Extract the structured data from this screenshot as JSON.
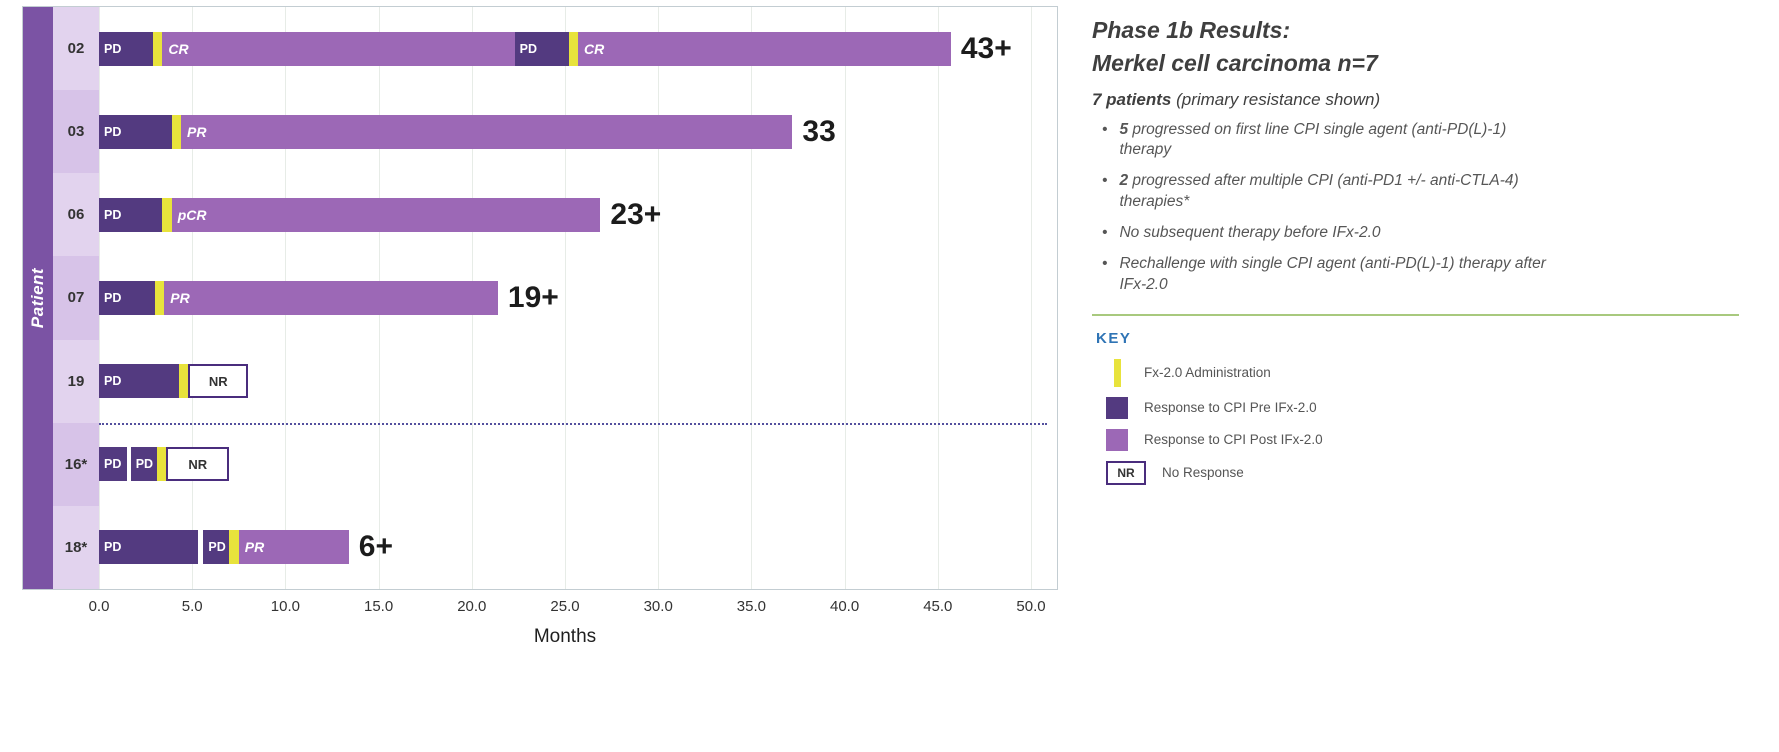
{
  "chart_data": {
    "type": "bar",
    "variant": "swimmer-plot",
    "xlabel": "Months",
    "ylabel": "Patient",
    "xlim": [
      0,
      50
    ],
    "grid": "vertical-light",
    "x_ticks": [
      {
        "value": 0,
        "label": "0.0"
      },
      {
        "value": 5,
        "label": "5.0"
      },
      {
        "value": 10,
        "label": "10.0"
      },
      {
        "value": 15,
        "label": "15.0"
      },
      {
        "value": 20,
        "label": "20.0"
      },
      {
        "value": 25,
        "label": "25.0"
      },
      {
        "value": 30,
        "label": "30.0"
      },
      {
        "value": 35,
        "label": "35.0"
      },
      {
        "value": 40,
        "label": "40.0"
      },
      {
        "value": 45,
        "label": "45.0"
      },
      {
        "value": 50,
        "label": "50.0"
      }
    ],
    "separator_after_row_index": 4,
    "rows": [
      {
        "patient": "02",
        "end_label": "43+",
        "segments": [
          {
            "kind": "pre",
            "label": "PD",
            "start": 0,
            "end": 2.9
          },
          {
            "kind": "admin",
            "label": "",
            "start": 2.9,
            "end": 3.4
          },
          {
            "kind": "post",
            "label": "CR",
            "start": 3.4,
            "end": 22.3
          },
          {
            "kind": "pre",
            "label": "PD",
            "start": 22.3,
            "end": 25.2
          },
          {
            "kind": "admin",
            "label": "",
            "start": 25.2,
            "end": 25.7
          },
          {
            "kind": "post",
            "label": "CR",
            "start": 25.7,
            "end": 45.7
          }
        ]
      },
      {
        "patient": "03",
        "end_label": "33",
        "segments": [
          {
            "kind": "pre",
            "label": "PD",
            "start": 0,
            "end": 3.9
          },
          {
            "kind": "admin",
            "label": "",
            "start": 3.9,
            "end": 4.4
          },
          {
            "kind": "post",
            "label": "PR",
            "start": 4.4,
            "end": 37.2
          }
        ]
      },
      {
        "patient": "06",
        "end_label": "23+",
        "segments": [
          {
            "kind": "pre",
            "label": "PD",
            "start": 0,
            "end": 3.4
          },
          {
            "kind": "admin",
            "label": "",
            "start": 3.4,
            "end": 3.9
          },
          {
            "kind": "post",
            "label": "pCR",
            "start": 3.9,
            "end": 26.9
          }
        ]
      },
      {
        "patient": "07",
        "end_label": "19+",
        "segments": [
          {
            "kind": "pre",
            "label": "PD",
            "start": 0,
            "end": 3.0
          },
          {
            "kind": "admin",
            "label": "",
            "start": 3.0,
            "end": 3.5
          },
          {
            "kind": "post",
            "label": "PR",
            "start": 3.5,
            "end": 21.4
          }
        ]
      },
      {
        "patient": "19",
        "end_label": "",
        "segments": [
          {
            "kind": "pre",
            "label": "PD",
            "start": 0,
            "end": 4.3
          },
          {
            "kind": "admin",
            "label": "",
            "start": 4.3,
            "end": 4.8
          },
          {
            "kind": "nr",
            "label": "NR",
            "start": 4.8,
            "end": 8.0
          }
        ]
      },
      {
        "patient": "16*",
        "end_label": "",
        "segments": [
          {
            "kind": "pre",
            "label": "PD",
            "start": 0,
            "end": 1.5
          },
          {
            "kind": "pre",
            "label": "PD",
            "start": 1.7,
            "end": 3.1
          },
          {
            "kind": "admin",
            "label": "",
            "start": 3.1,
            "end": 3.6
          },
          {
            "kind": "nr",
            "label": "NR",
            "start": 3.6,
            "end": 7.0
          }
        ]
      },
      {
        "patient": "18*",
        "end_label": "6+",
        "segments": [
          {
            "kind": "pre",
            "label": "PD",
            "start": 0,
            "end": 5.3
          },
          {
            "kind": "pre",
            "label": "PD",
            "start": 5.6,
            "end": 7.0
          },
          {
            "kind": "admin",
            "label": "",
            "start": 7.0,
            "end": 7.5
          },
          {
            "kind": "post",
            "label": "PR",
            "start": 7.5,
            "end": 13.4
          }
        ]
      }
    ]
  },
  "colors": {
    "pre": "#533a80",
    "post": "#9c68b6",
    "admin": "#e8e33c",
    "nr_border": "#4a2d7d",
    "patient_strip": "#7b53a4",
    "key_title": "#2f74b5",
    "separator_green": "#a8c97e"
  },
  "side_panel": {
    "title_line1": "Phase 1b Results:",
    "title_line2": "Merkel cell carcinoma n=7",
    "subtitle_bold": "7 patients",
    "subtitle_rest": " (primary resistance shown)",
    "bullets": [
      {
        "bold": "5",
        "text": " progressed on first line CPI single agent (anti-PD(L)-1) therapy"
      },
      {
        "bold": "2",
        "text": " progressed after multiple CPI (anti-PD1 +/- anti-CTLA-4) therapies*"
      },
      {
        "bold": "",
        "text": "No subsequent therapy before IFx-2.0"
      },
      {
        "bold": "",
        "text": "Rechallenge with single CPI agent  (anti-PD(L)-1) therapy after IFx-2.0"
      }
    ],
    "key": {
      "title": "KEY",
      "items": [
        {
          "icon": "admin-tick-icon",
          "nr_text": "",
          "label": "Fx-2.0 Administration"
        },
        {
          "icon": "pre-square-icon",
          "nr_text": "",
          "label": "Response to CPI Pre IFx-2.0"
        },
        {
          "icon": "post-square-icon",
          "nr_text": "",
          "label": "Response to CPI Post IFx-2.0"
        },
        {
          "icon": "nr-box-icon",
          "nr_text": "NR",
          "label": "No Response"
        }
      ]
    }
  }
}
